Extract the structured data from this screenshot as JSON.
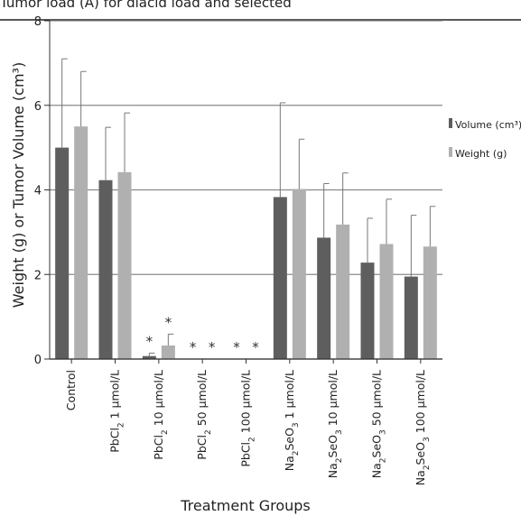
{
  "chart_data": {
    "type": "bar",
    "title": "",
    "cut_title": "Tumor load (A) for diacid load and selected",
    "ylabel": "Weight (g) or Tumor Volume (cm³)",
    "xlabel": "Treatment Groups",
    "ylim": [
      0,
      8
    ],
    "yticks": [
      0,
      2,
      4,
      6,
      8
    ],
    "grid": true,
    "legend_position": "right",
    "categories": [
      {
        "pre": "Control",
        "sub": "",
        "post": ""
      },
      {
        "pre": "PbCl",
        "sub": "2",
        "post": " 1 μmol/L"
      },
      {
        "pre": "PbCl",
        "sub": "2",
        "post": " 10 μmol/L"
      },
      {
        "pre": "PbCl",
        "sub": "2",
        "post": " 50 μmol/L"
      },
      {
        "pre": "PbCl",
        "sub": "2",
        "post": " 100 μmol/L"
      },
      {
        "pre": "Na",
        "sub": "2",
        "mid": "SeO",
        "sub2": "3",
        "post": " 1 μmol/L"
      },
      {
        "pre": "Na",
        "sub": "2",
        "mid": "SeO",
        "sub2": "3",
        "post": " 10 μmol/L"
      },
      {
        "pre": "Na",
        "sub": "2",
        "mid": "SeO",
        "sub2": "3",
        "post": " 50 μmol/L"
      },
      {
        "pre": "Na",
        "sub": "2",
        "mid": "SeO",
        "sub2": "3",
        "post": " 100 μmol/L"
      }
    ],
    "series": [
      {
        "name": "Volume (cm³)",
        "color": "#5e5e5e",
        "values": [
          5.0,
          4.23,
          0.07,
          0,
          0,
          3.83,
          2.87,
          2.28,
          1.95
        ],
        "errors": [
          2.1,
          1.25,
          0.07,
          0,
          0,
          2.23,
          1.28,
          1.05,
          1.45
        ],
        "stars": [
          false,
          false,
          true,
          true,
          true,
          false,
          false,
          false,
          false
        ]
      },
      {
        "name": "Weight (g)",
        "color": "#b0b0b0",
        "values": [
          5.5,
          4.42,
          0.32,
          0,
          0,
          4.02,
          3.18,
          2.72,
          2.66
        ],
        "errors": [
          1.3,
          1.4,
          0.27,
          0,
          0,
          1.18,
          1.22,
          1.06,
          0.95
        ],
        "stars": [
          false,
          false,
          true,
          true,
          true,
          false,
          false,
          false,
          false
        ]
      }
    ],
    "star_symbol": "*"
  }
}
